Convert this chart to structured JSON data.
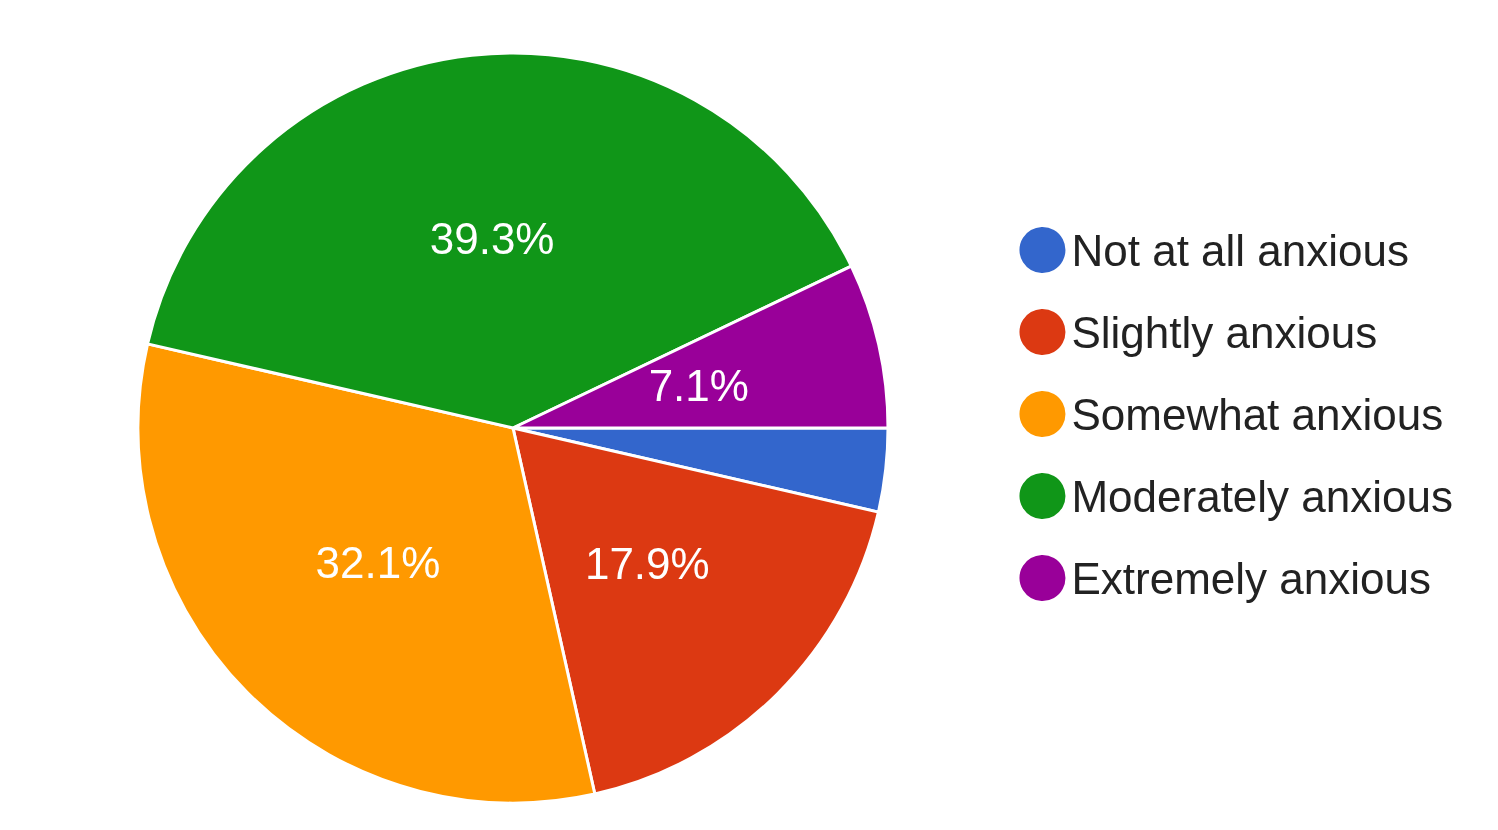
{
  "chart_data": {
    "type": "pie",
    "categories": [
      "Not at all anxious",
      "Slightly anxious",
      "Somewhat anxious",
      "Moderately anxious",
      "Extremely anxious"
    ],
    "values": [
      3.6,
      17.9,
      32.1,
      39.3,
      7.1
    ],
    "colors": [
      "#3366cc",
      "#dc3912",
      "#ff9900",
      "#109618",
      "#990099"
    ],
    "value_labels": [
      null,
      "17.9%",
      "32.1%",
      "39.3%",
      "7.1%"
    ],
    "legend": "right"
  }
}
